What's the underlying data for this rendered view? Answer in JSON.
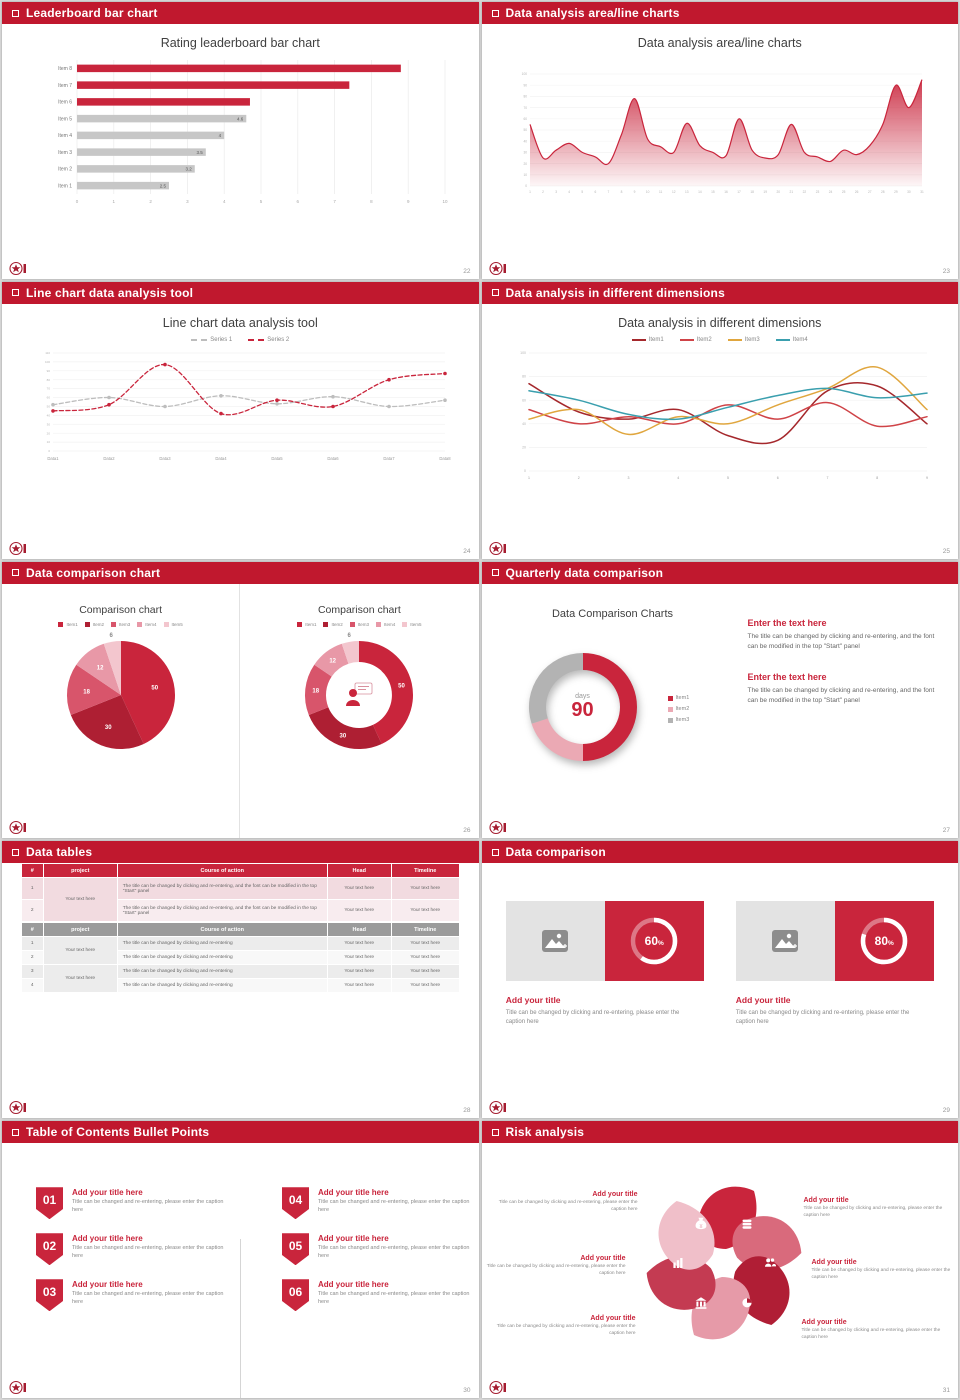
{
  "theme": {
    "header_red": "#c0182e",
    "chart_red": "#c9253c",
    "gray_bar": "#c7c7c7",
    "logo_red": "#a51c30",
    "text_dark": "#404040",
    "text_gray": "#8a8a8a"
  },
  "slides": [
    {
      "id": "leaderboard-bar-chart",
      "header": "Leaderboard bar chart",
      "page": "22",
      "title": "Rating leaderboard bar chart",
      "chart_data": {
        "type": "bar",
        "orientation": "horizontal",
        "categories": [
          "Item 1",
          "Item 2",
          "Item 3",
          "Item 4",
          "Item 5",
          "Item 6",
          "Item 7",
          "Item 8"
        ],
        "values": [
          2.5,
          3.2,
          3.5,
          4,
          4.6,
          4.7,
          7.4,
          8.8
        ],
        "bar_colors": [
          "gray",
          "gray",
          "gray",
          "gray",
          "gray",
          "red",
          "red",
          "red"
        ],
        "value_labels": [
          "2.5",
          "3.2",
          "3.5",
          "4",
          "4.6",
          "",
          "",
          ""
        ],
        "xlim": [
          0,
          10
        ],
        "xticks": [
          0,
          1,
          2,
          3,
          4,
          5,
          6,
          7,
          8,
          9,
          10
        ]
      }
    },
    {
      "id": "area-line-charts",
      "header": "Data analysis area/line charts",
      "page": "23",
      "title": "Data analysis area/line charts",
      "chart_data": {
        "type": "area",
        "x": [
          1,
          2,
          3,
          4,
          5,
          6,
          7,
          8,
          9,
          10,
          11,
          12,
          13,
          14,
          15,
          16,
          17,
          18,
          19,
          20,
          21,
          22,
          23,
          24,
          25,
          26,
          27,
          28,
          29,
          30,
          31
        ],
        "values": [
          55,
          25,
          32,
          38,
          30,
          26,
          20,
          46,
          78,
          42,
          35,
          30,
          56,
          36,
          30,
          27,
          60,
          32,
          25,
          28,
          55,
          30,
          26,
          22,
          32,
          28,
          36,
          55,
          90,
          70,
          95
        ],
        "ylim": [
          0,
          100
        ],
        "yticks": [
          0,
          10,
          20,
          30,
          40,
          50,
          60,
          70,
          80,
          90,
          100
        ]
      }
    },
    {
      "id": "line-chart-tool",
      "header": "Line chart data analysis tool",
      "page": "24",
      "title": "Line chart data analysis tool",
      "chart_data": {
        "type": "line",
        "x_labels": [
          "Data1",
          "Data2",
          "Data3",
          "Data4",
          "Data5",
          "Data6",
          "Data7",
          "Data8"
        ],
        "ylim": [
          0,
          110
        ],
        "yticks": [
          0,
          10,
          20,
          30,
          40,
          50,
          60,
          70,
          80,
          90,
          100,
          110
        ],
        "series": [
          {
            "name": "Series 1",
            "color": "#bdbdbd",
            "values": [
              52,
              60,
              50,
              62,
              53,
              61,
              50,
              57
            ]
          },
          {
            "name": "Series 2",
            "color": "#c9253c",
            "values": [
              45,
              52,
              97,
              42,
              57,
              50,
              80,
              87
            ]
          }
        ]
      }
    },
    {
      "id": "dimensions",
      "header": "Data analysis in different dimensions",
      "page": "25",
      "title": "Data analysis in different dimensions",
      "chart_data": {
        "type": "line",
        "x_labels": [
          1,
          2,
          3,
          4,
          5,
          6,
          7,
          8,
          9
        ],
        "ylim": [
          0,
          100
        ],
        "yticks": [
          0,
          20,
          40,
          60,
          80,
          100
        ],
        "series": [
          {
            "name": "Item1",
            "color": "#a5282c",
            "values": [
              74,
              50,
              44,
              52,
              30,
              26,
              68,
              72,
              40
            ]
          },
          {
            "name": "Item2",
            "color": "#cf4347",
            "values": [
              52,
              40,
              46,
              40,
              56,
              44,
              58,
              38,
              46
            ]
          },
          {
            "name": "Item3",
            "color": "#e0a63e",
            "values": [
              44,
              52,
              31,
              46,
              40,
              56,
              70,
              88,
              52
            ]
          },
          {
            "name": "Item4",
            "color": "#3a9fae",
            "values": [
              68,
              60,
              48,
              44,
              54,
              64,
              70,
              62,
              66
            ]
          }
        ]
      }
    },
    {
      "id": "comparison-pies",
      "header": "Data comparison chart",
      "page": "26",
      "chart_data": [
        {
          "type": "pie",
          "title": "Comparison chart",
          "labels": [
            "Item1",
            "Item2",
            "Item3",
            "Item4",
            "Item5"
          ],
          "values": [
            50,
            30,
            18,
            12,
            6
          ],
          "colors": [
            "#c9253c",
            "#ae1f33",
            "#d8556b",
            "#e898a7",
            "#f3c6ce"
          ]
        },
        {
          "type": "donut",
          "title": "Comparison chart",
          "labels": [
            "Item1",
            "Item2",
            "Item3",
            "Item4",
            "Item5"
          ],
          "values": [
            50,
            30,
            18,
            12,
            6
          ],
          "colors": [
            "#c9253c",
            "#ae1f33",
            "#d8556b",
            "#e898a7",
            "#f3c6ce"
          ]
        }
      ]
    },
    {
      "id": "quarterly-comparison",
      "header": "Quarterly data comparison",
      "page": "27",
      "title": "Data Comparison Charts",
      "chart_data": {
        "type": "donut",
        "labels": [
          "Item1",
          "Item2",
          "Item3"
        ],
        "values": [
          50,
          20,
          30
        ],
        "colors": [
          "#c9253c",
          "#eba9b4",
          "#b3b3b3"
        ],
        "center_label": "days",
        "center_value": "90"
      },
      "blocks": [
        {
          "heading": "Enter the text here",
          "body": "The title can be changed by clicking and re-entering, and the font can be modified in the top \"Start\" panel"
        },
        {
          "heading": "Enter the text here",
          "body": "The title can be changed by clicking and re-entering, and the font can be modified in the top \"Start\" panel"
        }
      ]
    },
    {
      "id": "data-tables",
      "header": "Data tables",
      "page": "28",
      "tableA": {
        "headers": [
          "#",
          "project",
          "Course of action",
          "Head",
          "Timeline"
        ],
        "merged_project": "Your text here",
        "rows": [
          {
            "num": "1",
            "course": "The title can be changed by clicking and re-entering, and the font can be modified in the top \"Start\" panel",
            "head": "Your text here",
            "timeline": "Your text here"
          },
          {
            "num": "2",
            "course": "The title can be changed by clicking and re-entering, and the font can be modified in the top \"Start\" panel",
            "head": "Your text here",
            "timeline": "Your text here"
          }
        ]
      },
      "tableB": {
        "headers": [
          "#",
          "project",
          "Course of action",
          "Head",
          "Timeline"
        ],
        "merged_projects": [
          "Your text here",
          "Your text here"
        ],
        "rows": [
          {
            "num": "1",
            "course": "The title can be changed by clicking and re-entering",
            "head": "Your text here",
            "timeline": "Your text here"
          },
          {
            "num": "2",
            "course": "The title can be changed by clicking and re-entering",
            "head": "Your text here",
            "timeline": "Your text here"
          },
          {
            "num": "3",
            "course": "The title can be changed by clicking and re-entering",
            "head": "Your text here",
            "timeline": "Your text here"
          },
          {
            "num": "4",
            "course": "The title can be changed by clicking and re-entering",
            "head": "Your text here",
            "timeline": "Your text here"
          }
        ]
      }
    },
    {
      "id": "data-comparison-cards",
      "header": "Data comparison",
      "page": "29",
      "chart_data": {
        "type": "donut-progress",
        "values": [
          60,
          80
        ]
      },
      "cards": [
        {
          "percent": "60",
          "unit": "%",
          "title": "Add your title",
          "caption": "Title can be changed by clicking and re-entering, please enter the caption here"
        },
        {
          "percent": "80",
          "unit": "%",
          "title": "Add your title",
          "caption": "Title can be changed by clicking and re-entering, please enter the caption here"
        }
      ]
    },
    {
      "id": "toc-bullets",
      "header": "Table of Contents Bullet Points",
      "page": "30",
      "items": [
        {
          "num": "01",
          "title": "Add your title here",
          "caption": "Title can be changed and re-entering, please enter the caption here"
        },
        {
          "num": "02",
          "title": "Add your title here",
          "caption": "Title can be changed and re-entering, please enter the caption here"
        },
        {
          "num": "03",
          "title": "Add your title here",
          "caption": "Title can be changed and re-entering, please enter the caption here"
        },
        {
          "num": "04",
          "title": "Add your title here",
          "caption": "Title can be changed and re-entering, please enter the caption here"
        },
        {
          "num": "05",
          "title": "Add your title here",
          "caption": "Title can be changed and re-entering, please enter the caption here"
        },
        {
          "num": "06",
          "title": "Add your title here",
          "caption": "Title can be changed and re-entering, please enter the caption here"
        }
      ]
    },
    {
      "id": "risk-analysis",
      "header": "Risk analysis",
      "page": "31",
      "wheel": {
        "petal_colors": [
          "#c9253c",
          "#d96a7c",
          "#b01e35",
          "#e69aa8",
          "#c43b52",
          "#f0bfc9"
        ],
        "icons": [
          "coins-icon",
          "people-icon",
          "pie-chart-icon",
          "bank-icon",
          "bar-chart-icon",
          "money-bag-icon"
        ]
      },
      "blocks": [
        {
          "title": "Add your title",
          "caption": "Title can be changed by clicking and re-entering, please enter the caption here"
        },
        {
          "title": "Add your title",
          "caption": "Title can be changed by clicking and re-entering, please enter the caption here"
        },
        {
          "title": "Add your title",
          "caption": "Title can be changed by clicking and re-entering, please enter the caption here"
        },
        {
          "title": "Add your title",
          "caption": "Title can be changed by clicking and re-entering, please enter the caption here"
        },
        {
          "title": "Add your title",
          "caption": "Title can be changed by clicking and re-entering, please enter the caption here"
        },
        {
          "title": "Add your title",
          "caption": "Title can be changed by clicking and re-entering, please enter the caption here"
        }
      ]
    }
  ]
}
